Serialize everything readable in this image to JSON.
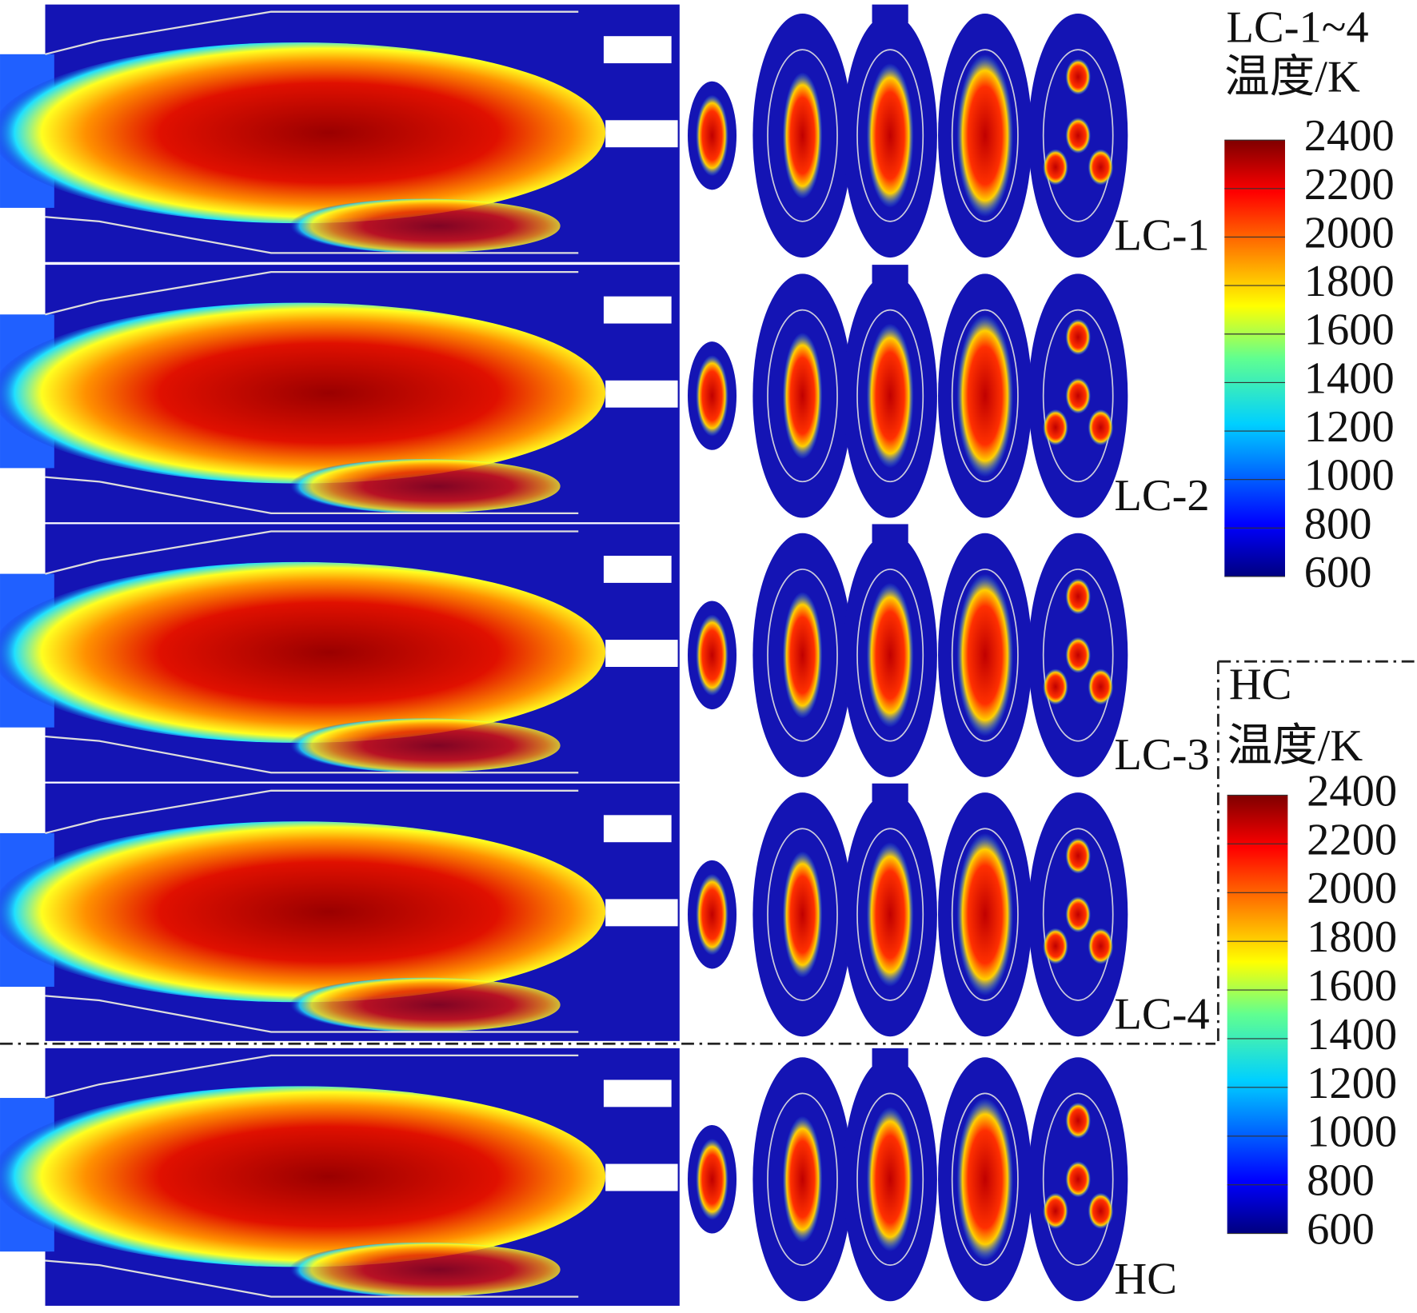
{
  "panels": [
    {
      "label": "LC-1"
    },
    {
      "label": "LC-2"
    },
    {
      "label": "LC-3"
    },
    {
      "label": "LC-4"
    },
    {
      "label": "HC"
    }
  ],
  "colorbars": [
    {
      "title": "LC-1~4",
      "unit": "温度/K",
      "ticks": [
        2400,
        2200,
        2000,
        1800,
        1600,
        1400,
        1200,
        1000,
        800,
        600
      ]
    },
    {
      "title": "HC",
      "unit": "温度/K",
      "ticks": [
        2400,
        2200,
        2000,
        1800,
        1600,
        1400,
        1200,
        1000,
        800,
        600
      ]
    }
  ]
}
